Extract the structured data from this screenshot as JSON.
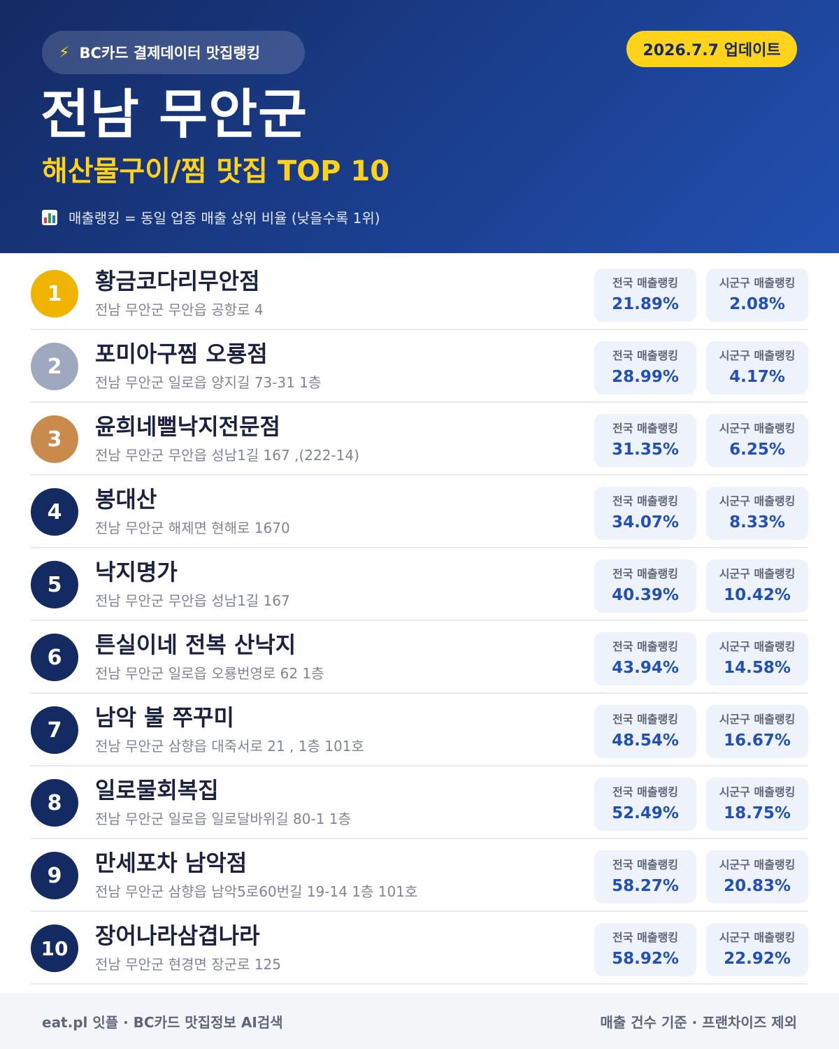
{
  "header": {
    "source_icon": "lightning-bolt-icon",
    "source_label": "BC카드 결제데이터 맛집랭킹",
    "update_label": "2026.7.7 업데이트",
    "region": "전남 무안군",
    "category_title": "해산물구이/찜 맛집 TOP 10",
    "legend_icon": "bar-chart-icon",
    "legend_text": "매출랭킹 = 동일 업종 매출 상위 비율 (낮을수록 1위)"
  },
  "colors": {
    "header_bg": "#1b3f8f",
    "accent_yellow": "#ffd31a",
    "rank_gold": "#f0b400",
    "rank_silver": "#9ea9bf",
    "rank_bronze": "#c98a4b",
    "rank_default": "#142a63",
    "stat_value": "#2050b8"
  },
  "stat_labels": {
    "national": "전국 매출랭킹",
    "local": "시군구 매출랭킹"
  },
  "restaurants": [
    {
      "rank": "1",
      "name": "황금코다리무안점",
      "address": "전남 무안군 무안읍 공항로 4",
      "national": "21.89%",
      "local": "2.08%",
      "badge_color": "#f0b400"
    },
    {
      "rank": "2",
      "name": "포미아구찜 오룡점",
      "address": "전남 무안군 일로읍 양지길 73-31 1층",
      "national": "28.99%",
      "local": "4.17%",
      "badge_color": "#9ea9bf"
    },
    {
      "rank": "3",
      "name": "윤희네뻘낙지전문점",
      "address": "전남 무안군 무안읍 성남1길 167 ,(222-14)",
      "national": "31.35%",
      "local": "6.25%",
      "badge_color": "#c98a4b"
    },
    {
      "rank": "4",
      "name": "봉대산",
      "address": "전남 무안군 해제면 현해로 1670",
      "national": "34.07%",
      "local": "8.33%",
      "badge_color": "#142a63"
    },
    {
      "rank": "5",
      "name": "낙지명가",
      "address": "전남 무안군 무안읍 성남1길 167",
      "national": "40.39%",
      "local": "10.42%",
      "badge_color": "#142a63"
    },
    {
      "rank": "6",
      "name": "튼실이네 전복 산낙지",
      "address": "전남 무안군 일로읍 오룡번영로 62 1층",
      "national": "43.94%",
      "local": "14.58%",
      "badge_color": "#142a63"
    },
    {
      "rank": "7",
      "name": "남악 불 쭈꾸미",
      "address": "전남 무안군 삼향읍 대죽서로 21 , 1층 101호",
      "national": "48.54%",
      "local": "16.67%",
      "badge_color": "#142a63"
    },
    {
      "rank": "8",
      "name": "일로물회복집",
      "address": "전남 무안군 일로읍 일로달바위길 80-1 1층",
      "national": "52.49%",
      "local": "18.75%",
      "badge_color": "#142a63"
    },
    {
      "rank": "9",
      "name": "만세포차 남악점",
      "address": "전남 무안군 삼향읍 남악5로60번길 19-14 1층 101호",
      "national": "58.27%",
      "local": "20.83%",
      "badge_color": "#142a63"
    },
    {
      "rank": "10",
      "name": "장어나라삼겹나라",
      "address": "전남 무안군 현경면 장군로 125",
      "national": "58.92%",
      "local": "22.92%",
      "badge_color": "#142a63"
    }
  ],
  "footer": {
    "left": "eat.pl 잇플 · BC카드 맛집정보 AI검색",
    "right": "매출 건수 기준 · 프랜차이즈 제외"
  }
}
